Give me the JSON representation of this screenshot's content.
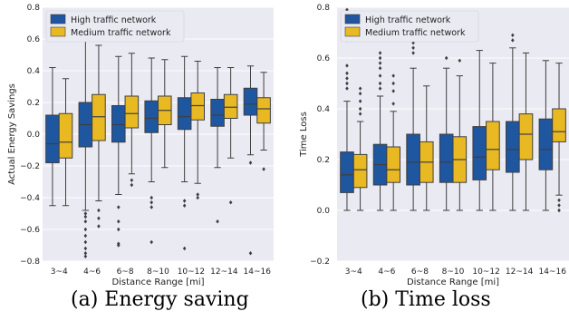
{
  "chart_data": [
    {
      "type": "box",
      "ylabel": "Actual Energy Savings",
      "xlabel": "Distance Range [mi]",
      "categories": [
        "3~4",
        "4~6",
        "6~8",
        "8~10",
        "10~12",
        "12~14",
        "14~16"
      ],
      "ylim": [
        -0.8,
        0.8
      ],
      "yticks": [
        "−0.8",
        "−0.6",
        "−0.4",
        "−0.2",
        "0.0",
        "0.2",
        "0.4",
        "0.6",
        "0.8"
      ],
      "grid": true,
      "legend_position": "top-left",
      "series": [
        {
          "name": "High traffic network",
          "color": "#1f56a0",
          "boxes": [
            {
              "whislo": -0.45,
              "q1": -0.18,
              "med": -0.06,
              "q3": 0.12,
              "whishi": 0.42,
              "fliers": []
            },
            {
              "whislo": -0.48,
              "q1": -0.08,
              "med": 0.06,
              "q3": 0.2,
              "whishi": 0.59,
              "fliers": [
                -0.5,
                -0.52,
                -0.55,
                -0.6,
                -0.64,
                -0.68,
                -0.72,
                -0.75,
                -0.77
              ]
            },
            {
              "whislo": -0.38,
              "q1": -0.05,
              "med": 0.06,
              "q3": 0.18,
              "whishi": 0.49,
              "fliers": [
                -0.46,
                -0.55,
                -0.6,
                -0.69,
                -0.7
              ]
            },
            {
              "whislo": -0.3,
              "q1": 0.01,
              "med": 0.1,
              "q3": 0.21,
              "whishi": 0.48,
              "fliers": [
                -0.4,
                -0.43,
                -0.46,
                -0.68
              ]
            },
            {
              "whislo": -0.3,
              "q1": 0.03,
              "med": 0.11,
              "q3": 0.23,
              "whishi": 0.49,
              "fliers": [
                -0.42,
                -0.45,
                -0.72
              ]
            },
            {
              "whislo": -0.21,
              "q1": 0.05,
              "med": 0.12,
              "q3": 0.22,
              "whishi": 0.42,
              "fliers": [
                -0.55
              ]
            },
            {
              "whislo": -0.13,
              "q1": 0.12,
              "med": 0.19,
              "q3": 0.29,
              "whishi": 0.43,
              "fliers": [
                -0.18,
                -0.75
              ]
            }
          ]
        },
        {
          "name": "Medium traffic network",
          "color": "#e8b923",
          "boxes": [
            {
              "whislo": -0.45,
              "q1": -0.15,
              "med": -0.05,
              "q3": 0.13,
              "whishi": 0.35,
              "fliers": []
            },
            {
              "whislo": -0.42,
              "q1": -0.04,
              "med": 0.11,
              "q3": 0.25,
              "whishi": 0.56,
              "fliers": [
                -0.48,
                -0.53,
                -0.58
              ]
            },
            {
              "whislo": -0.25,
              "q1": 0.04,
              "med": 0.13,
              "q3": 0.24,
              "whishi": 0.51,
              "fliers": [
                -0.29,
                -0.32
              ]
            },
            {
              "whislo": -0.21,
              "q1": 0.06,
              "med": 0.15,
              "q3": 0.24,
              "whishi": 0.47,
              "fliers": []
            },
            {
              "whislo": -0.31,
              "q1": 0.09,
              "med": 0.18,
              "q3": 0.26,
              "whishi": 0.46,
              "fliers": [
                -0.38,
                -0.4
              ]
            },
            {
              "whislo": -0.15,
              "q1": 0.1,
              "med": 0.17,
              "q3": 0.25,
              "whishi": 0.42,
              "fliers": [
                -0.43
              ]
            },
            {
              "whislo": -0.1,
              "q1": 0.07,
              "med": 0.16,
              "q3": 0.23,
              "whishi": 0.39,
              "fliers": [
                -0.22
              ]
            }
          ]
        }
      ]
    },
    {
      "type": "box",
      "ylabel": "Time Loss",
      "xlabel": "Distance Range [mi]",
      "categories": [
        "3~4",
        "4~6",
        "6~8",
        "8~10",
        "10~12",
        "12~14",
        "14~16"
      ],
      "ylim": [
        -0.2,
        0.8
      ],
      "yticks": [
        "−0.2",
        "0.0",
        "0.2",
        "0.4",
        "0.6",
        "0.8"
      ],
      "grid": true,
      "legend_position": "top-left",
      "series": [
        {
          "name": "High traffic network",
          "color": "#1f56a0",
          "boxes": [
            {
              "whislo": 0.0,
              "q1": 0.07,
              "med": 0.14,
              "q3": 0.23,
              "whishi": 0.43,
              "fliers": [
                0.48,
                0.5,
                0.52,
                0.54,
                0.57,
                0.67,
                0.7,
                0.79
              ]
            },
            {
              "whislo": 0.0,
              "q1": 0.1,
              "med": 0.18,
              "q3": 0.26,
              "whishi": 0.45,
              "fliers": [
                0.48,
                0.5,
                0.53,
                0.56,
                0.58,
                0.6,
                0.62,
                0.68
              ]
            },
            {
              "whislo": 0.0,
              "q1": 0.1,
              "med": 0.19,
              "q3": 0.3,
              "whishi": 0.56,
              "fliers": [
                0.62,
                0.64,
                0.66,
                0.69,
                0.71
              ]
            },
            {
              "whislo": 0.0,
              "q1": 0.11,
              "med": 0.19,
              "q3": 0.3,
              "whishi": 0.56,
              "fliers": [
                0.6
              ]
            },
            {
              "whislo": 0.0,
              "q1": 0.12,
              "med": 0.21,
              "q3": 0.33,
              "whishi": 0.63,
              "fliers": []
            },
            {
              "whislo": 0.0,
              "q1": 0.15,
              "med": 0.24,
              "q3": 0.35,
              "whishi": 0.64,
              "fliers": [
                0.67,
                0.69
              ]
            },
            {
              "whislo": 0.0,
              "q1": 0.16,
              "med": 0.24,
              "q3": 0.36,
              "whishi": 0.59,
              "fliers": []
            }
          ]
        },
        {
          "name": "Medium traffic network",
          "color": "#e8b923",
          "boxes": [
            {
              "whislo": 0.0,
              "q1": 0.09,
              "med": 0.16,
              "q3": 0.22,
              "whishi": 0.35,
              "fliers": [
                0.38,
                0.4,
                0.43,
                0.46,
                0.48
              ]
            },
            {
              "whislo": 0.0,
              "q1": 0.11,
              "med": 0.16,
              "q3": 0.25,
              "whishi": 0.39,
              "fliers": [
                0.42,
                0.47,
                0.5,
                0.53
              ]
            },
            {
              "whislo": 0.0,
              "q1": 0.11,
              "med": 0.19,
              "q3": 0.27,
              "whishi": 0.49,
              "fliers": []
            },
            {
              "whislo": 0.0,
              "q1": 0.11,
              "med": 0.2,
              "q3": 0.29,
              "whishi": 0.53,
              "fliers": [
                0.59
              ]
            },
            {
              "whislo": 0.0,
              "q1": 0.16,
              "med": 0.24,
              "q3": 0.35,
              "whishi": 0.58,
              "fliers": []
            },
            {
              "whislo": 0.0,
              "q1": 0.2,
              "med": 0.3,
              "q3": 0.38,
              "whishi": 0.62,
              "fliers": []
            },
            {
              "whislo": 0.06,
              "q1": 0.27,
              "med": 0.31,
              "q3": 0.4,
              "whishi": 0.58,
              "fliers": [
                0.0,
                0.02,
                0.04
              ]
            }
          ]
        }
      ]
    }
  ],
  "captions": {
    "a": "(a) Energy saving",
    "b": "(b) Time loss"
  }
}
